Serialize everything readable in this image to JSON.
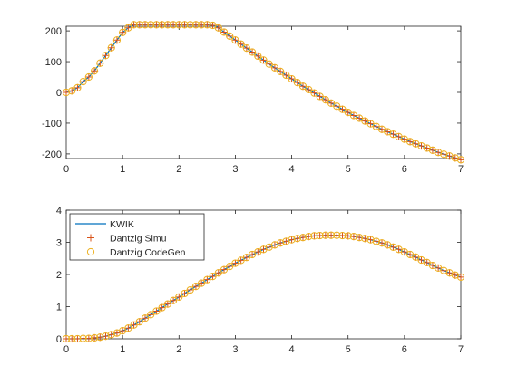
{
  "chart_data": [
    {
      "type": "line",
      "title": "",
      "xlabel": "",
      "ylabel": "",
      "xlim": [
        0,
        7
      ],
      "ylim": [
        -215,
        215
      ],
      "xticks": [
        0,
        1,
        2,
        3,
        4,
        5,
        6,
        7
      ],
      "yticks": [
        -200,
        -100,
        0,
        100,
        200
      ],
      "xtick_labels": [
        "0",
        "1",
        "2",
        "3",
        "4",
        "5",
        "6",
        "7"
      ],
      "ytick_labels": [
        "-200",
        "-100",
        "0",
        "100",
        "200"
      ],
      "grid": false,
      "x": [
        0,
        0.1,
        0.2,
        0.3,
        0.4,
        0.5,
        0.6,
        0.7,
        0.8,
        0.9,
        1.0,
        1.1,
        1.2,
        1.3,
        1.4,
        1.5,
        1.6,
        1.7,
        1.8,
        1.9,
        2.0,
        2.1,
        2.2,
        2.3,
        2.4,
        2.5,
        2.6,
        2.7,
        2.8,
        2.9,
        3.0,
        3.1,
        3.2,
        3.3,
        3.4,
        3.5,
        3.6,
        3.7,
        3.8,
        3.9,
        4.0,
        4.1,
        4.2,
        4.3,
        4.4,
        4.5,
        4.6,
        4.7,
        4.8,
        4.9,
        5.0,
        5.1,
        5.2,
        5.3,
        5.4,
        5.5,
        5.6,
        5.7,
        5.8,
        5.9,
        6.0,
        6.1,
        6.2,
        6.3,
        6.4,
        6.5,
        6.6,
        6.7,
        6.8,
        6.9,
        7.0
      ],
      "series": [
        {
          "name": "KWIK",
          "color": "#0072BD",
          "marker": "line",
          "values": [
            0,
            5,
            15,
            35,
            50,
            70,
            95,
            120,
            145,
            170,
            195,
            210,
            220,
            220,
            220,
            220,
            220,
            220,
            220,
            220,
            220,
            220,
            220,
            220,
            220,
            220,
            218,
            210,
            196,
            183,
            170,
            157,
            144,
            131,
            118,
            105,
            92,
            80,
            68,
            56,
            44,
            32,
            20,
            9,
            -2,
            -13,
            -24,
            -35,
            -45,
            -55,
            -65,
            -75,
            -84,
            -93,
            -102,
            -111,
            -120,
            -128,
            -136,
            -144,
            -152,
            -160,
            -167,
            -174,
            -181,
            -188,
            -195,
            -201,
            -207,
            -213,
            -219
          ]
        },
        {
          "name": "Dantzig Simu",
          "color": "#D95319",
          "marker": "+",
          "values": [
            0,
            5,
            15,
            35,
            50,
            70,
            95,
            120,
            145,
            170,
            195,
            210,
            220,
            220,
            220,
            220,
            220,
            220,
            220,
            220,
            220,
            220,
            220,
            220,
            220,
            220,
            218,
            210,
            196,
            183,
            170,
            157,
            144,
            131,
            118,
            105,
            92,
            80,
            68,
            56,
            44,
            32,
            20,
            9,
            -2,
            -13,
            -24,
            -35,
            -45,
            -55,
            -65,
            -75,
            -84,
            -93,
            -102,
            -111,
            -120,
            -128,
            -136,
            -144,
            -152,
            -160,
            -167,
            -174,
            -181,
            -188,
            -195,
            -201,
            -207,
            -213,
            -219
          ]
        },
        {
          "name": "Dantzig CodeGen",
          "color": "#EDB120",
          "marker": "o",
          "values": [
            0,
            5,
            15,
            35,
            50,
            70,
            95,
            120,
            145,
            170,
            195,
            210,
            220,
            220,
            220,
            220,
            220,
            220,
            220,
            220,
            220,
            220,
            220,
            220,
            220,
            220,
            218,
            210,
            196,
            183,
            170,
            157,
            144,
            131,
            118,
            105,
            92,
            80,
            68,
            56,
            44,
            32,
            20,
            9,
            -2,
            -13,
            -24,
            -35,
            -45,
            -55,
            -65,
            -75,
            -84,
            -93,
            -102,
            -111,
            -120,
            -128,
            -136,
            -144,
            -152,
            -160,
            -167,
            -174,
            -181,
            -188,
            -195,
            -201,
            -207,
            -213,
            -219
          ]
        }
      ]
    },
    {
      "type": "line",
      "title": "",
      "xlabel": "",
      "ylabel": "",
      "xlim": [
        0,
        7
      ],
      "ylim": [
        0,
        4
      ],
      "xticks": [
        0,
        1,
        2,
        3,
        4,
        5,
        6,
        7
      ],
      "yticks": [
        0,
        1,
        2,
        3,
        4
      ],
      "xtick_labels": [
        "0",
        "1",
        "2",
        "3",
        "4",
        "5",
        "6",
        "7"
      ],
      "ytick_labels": [
        "0",
        "1",
        "2",
        "3",
        "4"
      ],
      "grid": false,
      "legend_position": "top-left",
      "x": [
        0,
        0.1,
        0.2,
        0.3,
        0.4,
        0.5,
        0.6,
        0.7,
        0.8,
        0.9,
        1.0,
        1.1,
        1.2,
        1.3,
        1.4,
        1.5,
        1.6,
        1.7,
        1.8,
        1.9,
        2.0,
        2.1,
        2.2,
        2.3,
        2.4,
        2.5,
        2.6,
        2.7,
        2.8,
        2.9,
        3.0,
        3.1,
        3.2,
        3.3,
        3.4,
        3.5,
        3.6,
        3.7,
        3.8,
        3.9,
        4.0,
        4.1,
        4.2,
        4.3,
        4.4,
        4.5,
        4.6,
        4.7,
        4.8,
        4.9,
        5.0,
        5.1,
        5.2,
        5.3,
        5.4,
        5.5,
        5.6,
        5.7,
        5.8,
        5.9,
        6.0,
        6.1,
        6.2,
        6.3,
        6.4,
        6.5,
        6.6,
        6.7,
        6.8,
        6.9,
        7.0
      ],
      "series": [
        {
          "name": "KWIK",
          "color": "#0072BD",
          "marker": "line",
          "values": [
            0,
            0,
            0,
            0.01,
            0.01,
            0.03,
            0.05,
            0.08,
            0.13,
            0.18,
            0.25,
            0.33,
            0.43,
            0.53,
            0.64,
            0.75,
            0.86,
            0.97,
            1.08,
            1.19,
            1.3,
            1.41,
            1.52,
            1.63,
            1.73,
            1.84,
            1.94,
            2.05,
            2.15,
            2.25,
            2.35,
            2.44,
            2.53,
            2.62,
            2.7,
            2.78,
            2.85,
            2.92,
            2.98,
            3.03,
            3.08,
            3.12,
            3.15,
            3.18,
            3.2,
            3.21,
            3.22,
            3.22,
            3.22,
            3.21,
            3.2,
            3.18,
            3.15,
            3.12,
            3.08,
            3.03,
            2.98,
            2.92,
            2.85,
            2.78,
            2.7,
            2.62,
            2.54,
            2.45,
            2.37,
            2.28,
            2.2,
            2.12,
            2.05,
            1.98,
            1.92
          ]
        },
        {
          "name": "Dantzig Simu",
          "color": "#D95319",
          "marker": "+",
          "values": [
            0,
            0,
            0,
            0.01,
            0.01,
            0.03,
            0.05,
            0.08,
            0.13,
            0.18,
            0.25,
            0.33,
            0.43,
            0.53,
            0.64,
            0.75,
            0.86,
            0.97,
            1.08,
            1.19,
            1.3,
            1.41,
            1.52,
            1.63,
            1.73,
            1.84,
            1.94,
            2.05,
            2.15,
            2.25,
            2.35,
            2.44,
            2.53,
            2.62,
            2.7,
            2.78,
            2.85,
            2.92,
            2.98,
            3.03,
            3.08,
            3.12,
            3.15,
            3.18,
            3.2,
            3.21,
            3.22,
            3.22,
            3.22,
            3.21,
            3.2,
            3.18,
            3.15,
            3.12,
            3.08,
            3.03,
            2.98,
            2.92,
            2.85,
            2.78,
            2.7,
            2.62,
            2.54,
            2.45,
            2.37,
            2.28,
            2.2,
            2.12,
            2.05,
            1.98,
            1.92
          ]
        },
        {
          "name": "Dantzig CodeGen",
          "color": "#EDB120",
          "marker": "o",
          "values": [
            0,
            0,
            0,
            0.01,
            0.01,
            0.03,
            0.05,
            0.08,
            0.13,
            0.18,
            0.25,
            0.33,
            0.43,
            0.53,
            0.64,
            0.75,
            0.86,
            0.97,
            1.08,
            1.19,
            1.3,
            1.41,
            1.52,
            1.63,
            1.73,
            1.84,
            1.94,
            2.05,
            2.15,
            2.25,
            2.35,
            2.44,
            2.53,
            2.62,
            2.7,
            2.78,
            2.85,
            2.92,
            2.98,
            3.03,
            3.08,
            3.12,
            3.15,
            3.18,
            3.2,
            3.21,
            3.22,
            3.22,
            3.22,
            3.21,
            3.2,
            3.18,
            3.15,
            3.12,
            3.08,
            3.03,
            2.98,
            2.92,
            2.85,
            2.78,
            2.7,
            2.62,
            2.54,
            2.45,
            2.37,
            2.28,
            2.2,
            2.12,
            2.05,
            1.98,
            1.92
          ]
        }
      ]
    }
  ]
}
